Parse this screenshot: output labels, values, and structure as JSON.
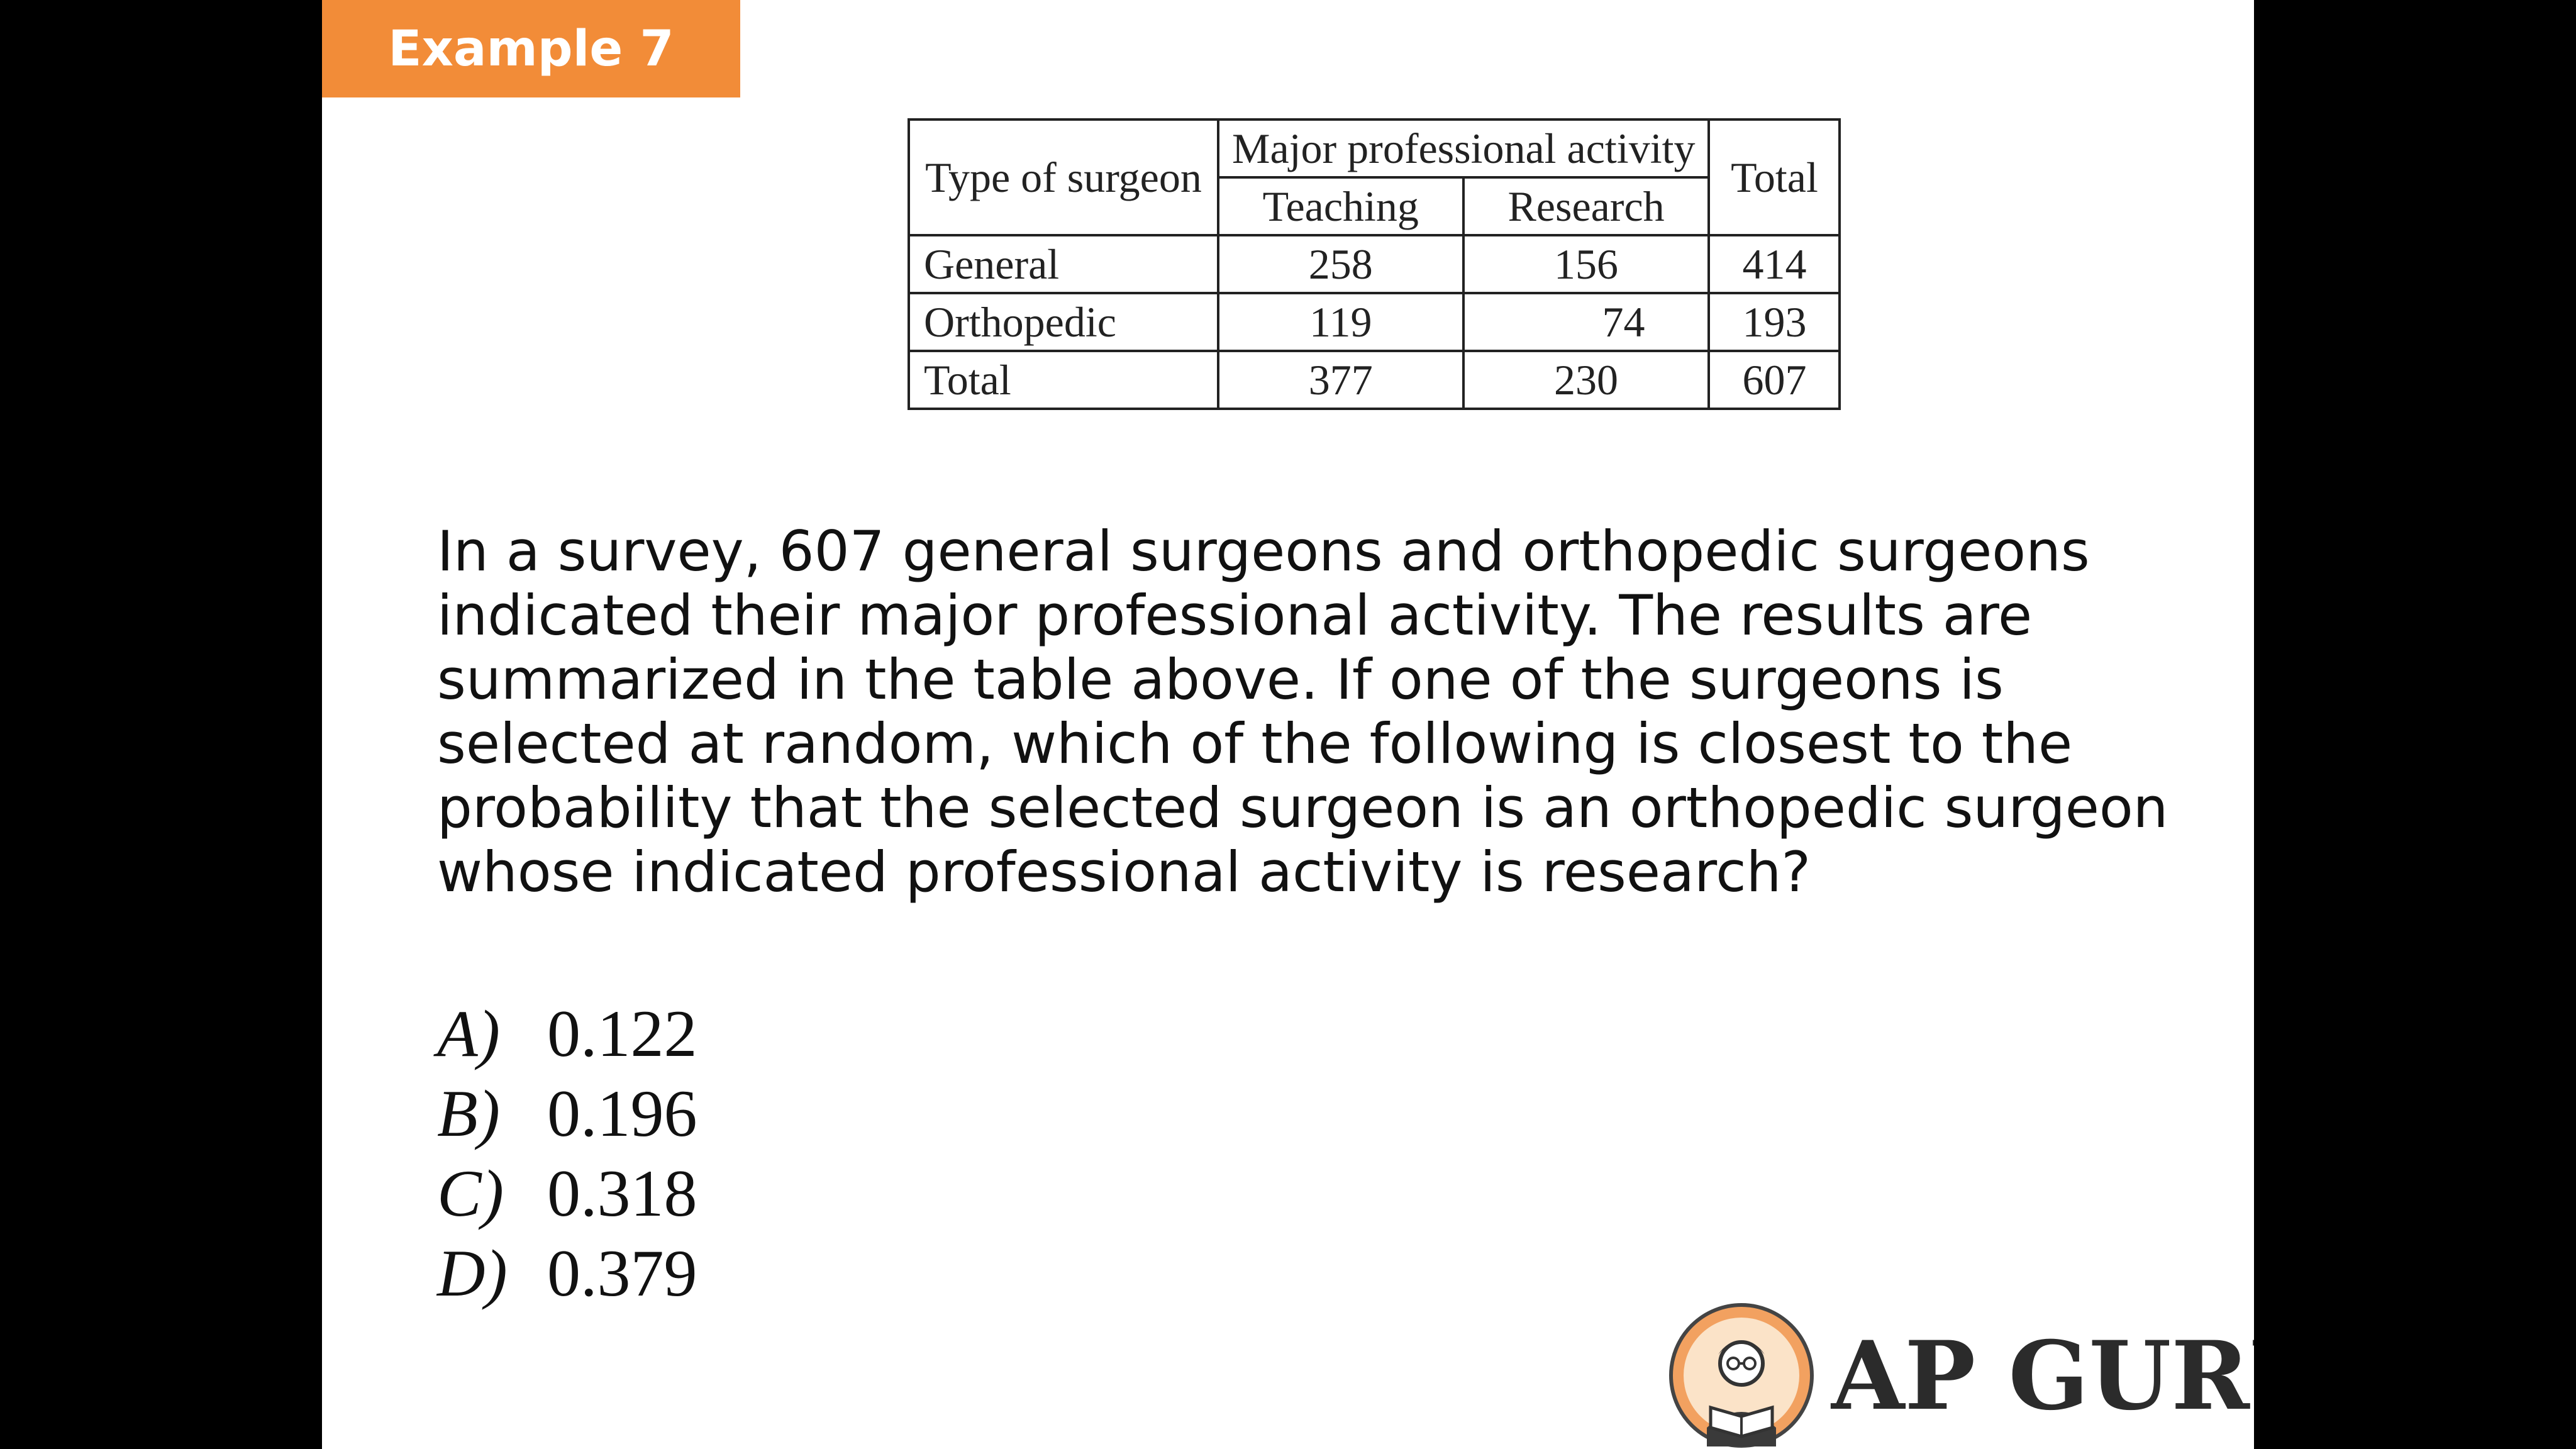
{
  "badge": {
    "label": "Example 7"
  },
  "table": {
    "header": {
      "type_of_surgeon": "Type of surgeon",
      "major_activity": "Major professional activity",
      "teaching": "Teaching",
      "research": "Research",
      "total": "Total"
    },
    "rows": [
      {
        "label": "General",
        "teaching": "258",
        "research": "156",
        "total": "414"
      },
      {
        "label": "Orthopedic",
        "teaching": "119",
        "research": "74",
        "total": "193"
      },
      {
        "label": "Total",
        "teaching": "377",
        "research": "230",
        "total": "607"
      }
    ]
  },
  "question": "In a survey, 607 general surgeons and orthopedic surgeons indicated their major professional activity. The results are summarized in the table above. If one of the surgeons is selected at random, which of the following is closest to the probability that the selected surgeon is an orthopedic surgeon whose indicated professional activity is research?",
  "choices": [
    {
      "letter": "A)",
      "value": "0.122"
    },
    {
      "letter": "B)",
      "value": "0.196"
    },
    {
      "letter": "C)",
      "value": "0.318"
    },
    {
      "letter": "D)",
      "value": "0.379"
    }
  ],
  "logo": {
    "text": "AP GURU",
    "icon": "reading-person-icon"
  },
  "colors": {
    "badge": "#f28c38",
    "background": "#000000",
    "slide": "#ffffff"
  }
}
